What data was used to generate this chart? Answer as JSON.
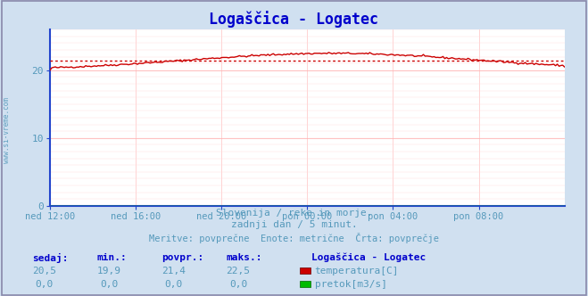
{
  "title": "Logaščica - Logatec",
  "bg_color": "#d0e0f0",
  "plot_bg_color": "#ffffff",
  "border_color": "#8888aa",
  "title_color": "#0000cc",
  "text_color": "#5599bb",
  "label_color": "#0000cc",
  "axis_color": "#2244cc",
  "grid_color_v": "#ffcccc",
  "grid_color_h": "#ffcccc",
  "x_tick_labels": [
    "ned 12:00",
    "ned 16:00",
    "ned 20:00",
    "pon 00:00",
    "pon 04:00",
    "pon 08:00"
  ],
  "x_tick_positions": [
    0,
    48,
    96,
    144,
    192,
    240
  ],
  "y_ticks": [
    0,
    10,
    20
  ],
  "ylim": [
    0,
    26
  ],
  "xlim": [
    0,
    288
  ],
  "avg_line_value": 21.4,
  "avg_line_color": "#cc0000",
  "temp_line_color": "#cc0000",
  "flow_line_color": "#00bb00",
  "watermark": "www.si-vreme.com",
  "footer_line1": "Slovenija / reke in morje.",
  "footer_line2": "zadnji dan / 5 minut.",
  "footer_line3": "Meritve: povprečne  Enote: metrične  Črta: povprečje",
  "table_headers": [
    "sedaj:",
    "min.:",
    "povpr.:",
    "maks.:"
  ],
  "station_name": "Logaščica - Logatec",
  "temp_row": [
    "20,5",
    "19,9",
    "21,4",
    "22,5"
  ],
  "flow_row": [
    "0,0",
    "0,0",
    "0,0",
    "0,0"
  ],
  "temp_label": "temperatura[C]",
  "flow_label": "pretok[m3/s]",
  "n_points": 289
}
